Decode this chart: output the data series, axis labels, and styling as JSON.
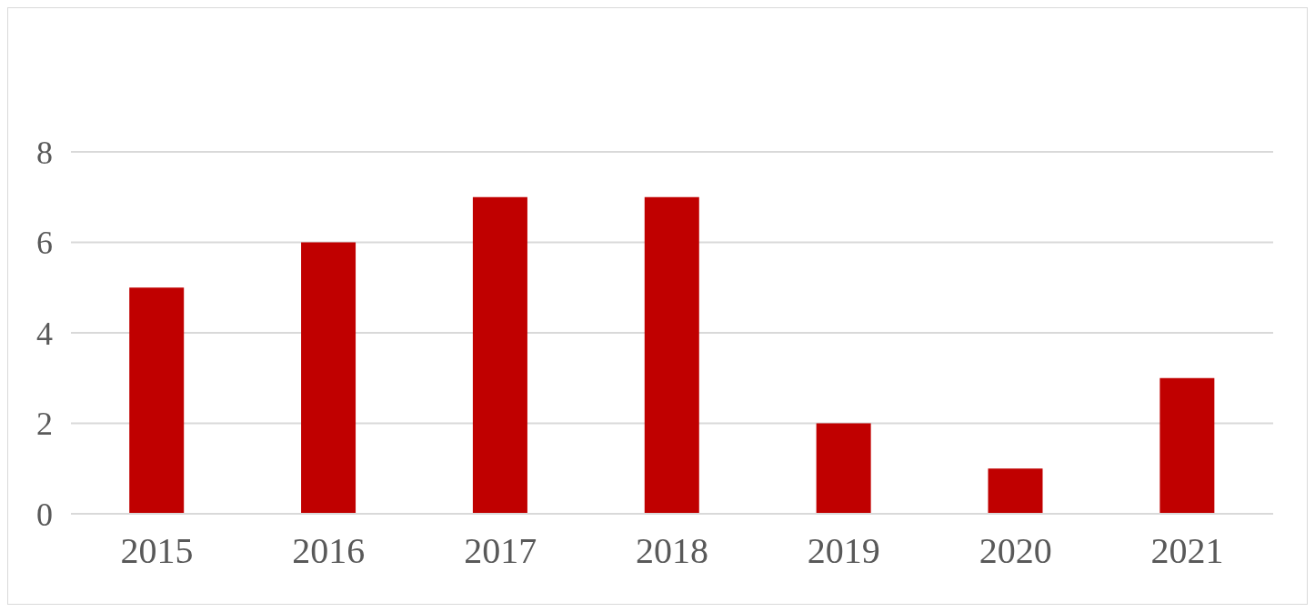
{
  "chart_data": {
    "type": "bar",
    "categories": [
      "2015",
      "2016",
      "2017",
      "2018",
      "2019",
      "2020",
      "2021"
    ],
    "values": [
      5,
      6,
      7,
      7,
      2,
      1,
      3
    ],
    "color": "#c00000",
    "ylim": [
      0,
      8
    ],
    "yticks": [
      0,
      2,
      4,
      6,
      8
    ],
    "grid": "y"
  }
}
